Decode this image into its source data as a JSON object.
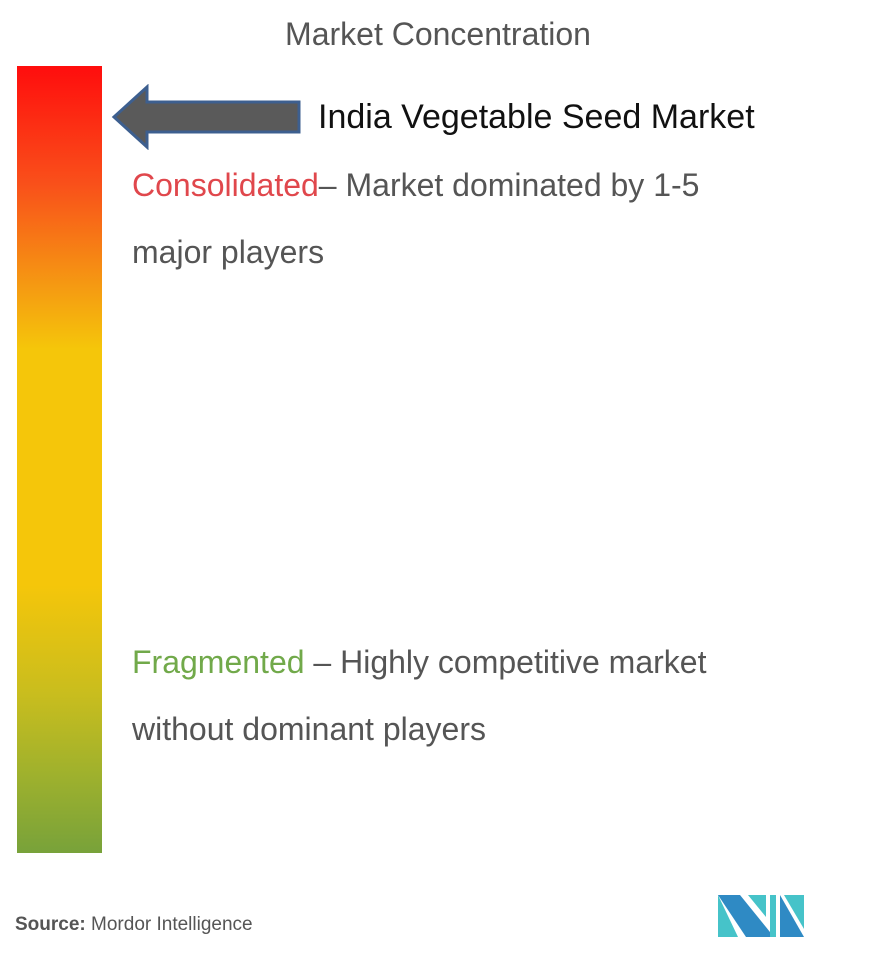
{
  "title": "Market Concentration",
  "market_name": "India Vegetable Seed Market",
  "consolidated": {
    "label": "Consolidated",
    "description_1": "– Market dominated by 1-5",
    "description_2": "major players"
  },
  "fragmented": {
    "label": "Fragmented",
    "description_1": " – Highly competitive market",
    "description_2": "without dominant players"
  },
  "source": {
    "label": "Source:",
    "value": " Mordor Intelligence"
  },
  "colors": {
    "consolidated": "#e0474c",
    "fragmented": "#71a94a",
    "arrow_fill": "#5a5a5a",
    "arrow_border": "#3d5f8f",
    "gradient_top": "#ff0d0d",
    "gradient_mid": "#f5c60a",
    "gradient_bottom": "#78a23a"
  },
  "icons": {
    "pointer": "left-arrow",
    "logo": "mordor-intelligence-logo"
  }
}
